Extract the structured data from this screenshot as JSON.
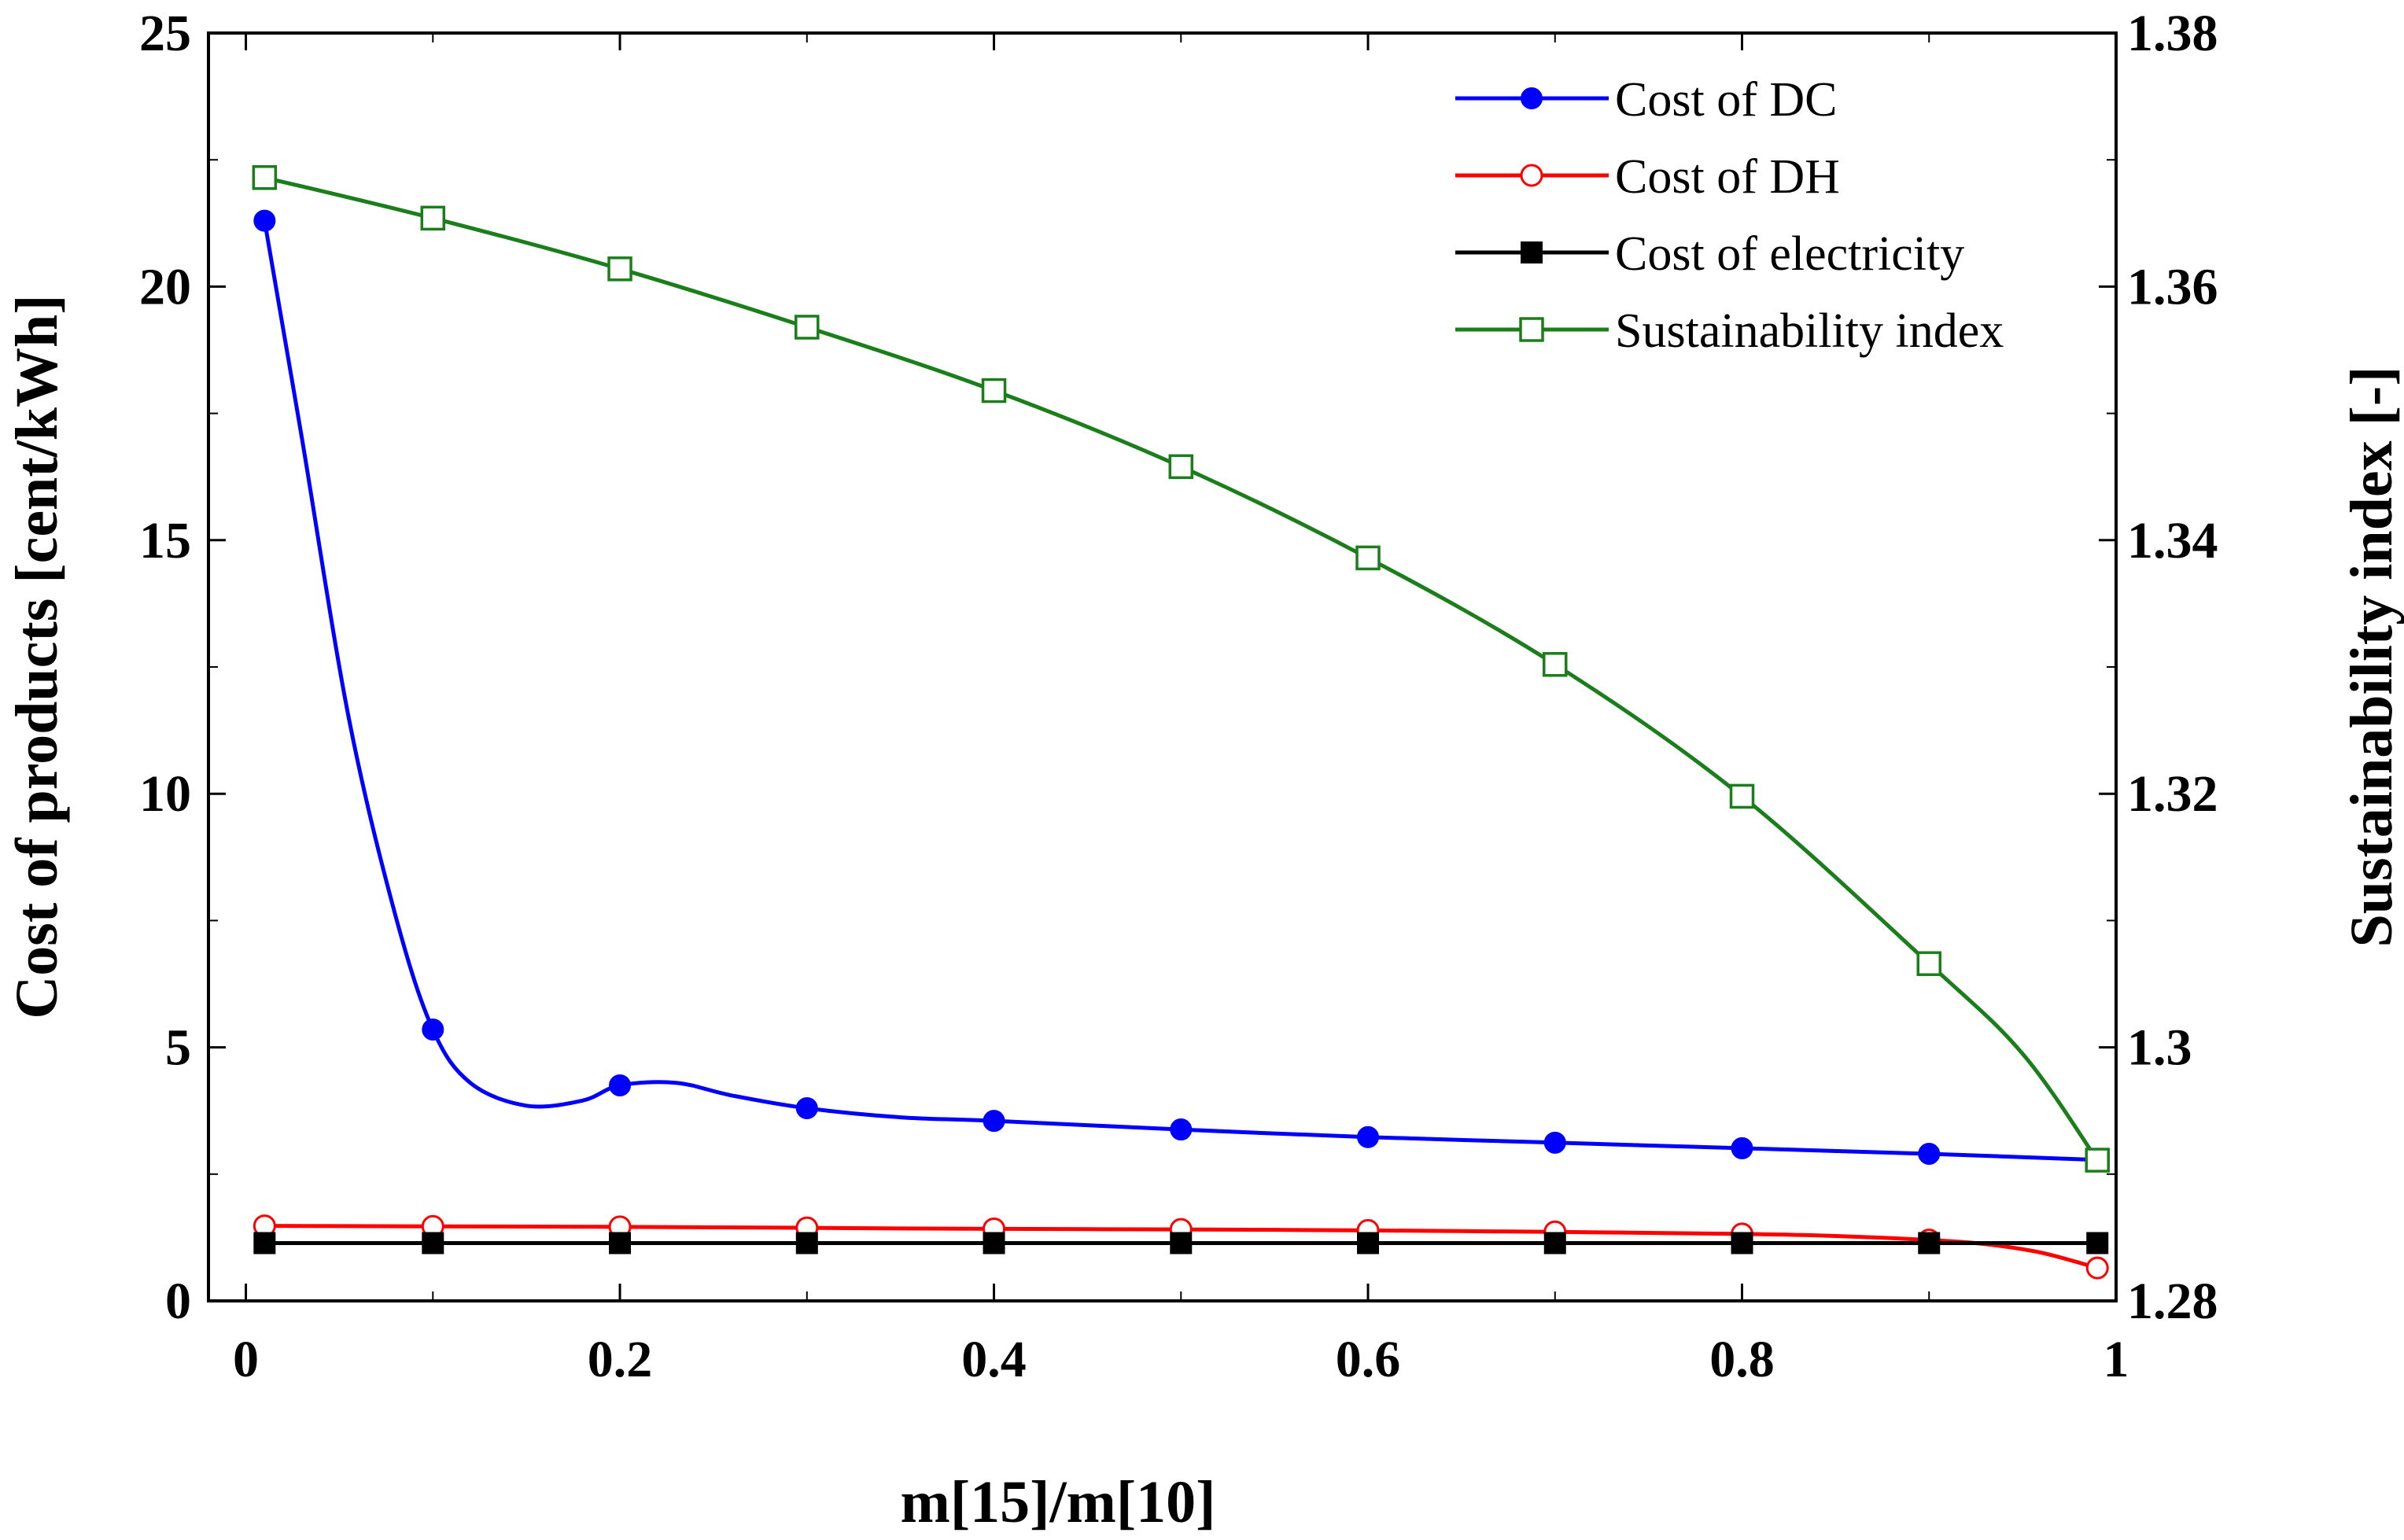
{
  "chart_data": {
    "type": "line",
    "x": [
      0.01,
      0.1,
      0.2,
      0.3,
      0.4,
      0.5,
      0.6,
      0.7,
      0.8,
      0.9,
      0.99
    ],
    "xlabel": "m[15]/m[10]",
    "ylabel": "Cost of products [cent/kWh]",
    "y2label": "Sustainability index [-]",
    "xlim": [
      -0.02,
      1.0
    ],
    "ylim": [
      0,
      25
    ],
    "y2lim": [
      1.28,
      1.38
    ],
    "xticks": [
      0,
      0.2,
      0.4,
      0.6,
      0.8,
      1
    ],
    "xtick_labels": [
      "0",
      "0.2",
      "0.4",
      "0.6",
      "0.8",
      "1"
    ],
    "yticks": [
      0,
      5,
      10,
      15,
      20,
      25
    ],
    "ytick_labels": [
      "0",
      "5",
      "10",
      "15",
      "20",
      "25"
    ],
    "y2ticks": [
      1.28,
      1.3,
      1.32,
      1.34,
      1.36,
      1.38
    ],
    "y2tick_labels": [
      "1.28",
      "1.3",
      "1.32",
      "1.34",
      "1.36",
      "1.38"
    ],
    "grid": false,
    "legend_position": "top-right",
    "series": [
      {
        "name": "Cost of DC",
        "axis": "left",
        "color": "#0000ff",
        "marker": "filled-circle",
        "values": [
          21.3,
          5.35,
          4.25,
          3.8,
          3.55,
          3.38,
          3.23,
          3.12,
          3.01,
          2.9,
          2.78
        ],
        "curve": [
          [
            0.01,
            21.3
          ],
          [
            0.03,
            17.0
          ],
          [
            0.055,
            11.5
          ],
          [
            0.08,
            7.6
          ],
          [
            0.1,
            5.35
          ],
          [
            0.12,
            4.3
          ],
          [
            0.15,
            3.85
          ],
          [
            0.18,
            3.95
          ],
          [
            0.2,
            4.25
          ],
          [
            0.23,
            4.3
          ],
          [
            0.26,
            4.05
          ],
          [
            0.3,
            3.8
          ],
          [
            0.35,
            3.62
          ],
          [
            0.4,
            3.55
          ],
          [
            0.5,
            3.38
          ],
          [
            0.6,
            3.23
          ],
          [
            0.7,
            3.12
          ],
          [
            0.8,
            3.01
          ],
          [
            0.9,
            2.9
          ],
          [
            0.99,
            2.78
          ]
        ]
      },
      {
        "name": "Cost of DH",
        "axis": "left",
        "color": "#ff0000",
        "marker": "open-circle",
        "values": [
          1.48,
          1.47,
          1.46,
          1.44,
          1.42,
          1.41,
          1.39,
          1.36,
          1.32,
          1.2,
          0.65
        ],
        "curve": [
          [
            0.01,
            1.48
          ],
          [
            0.1,
            1.47
          ],
          [
            0.2,
            1.46
          ],
          [
            0.3,
            1.44
          ],
          [
            0.4,
            1.42
          ],
          [
            0.5,
            1.41
          ],
          [
            0.6,
            1.39
          ],
          [
            0.7,
            1.36
          ],
          [
            0.8,
            1.32
          ],
          [
            0.85,
            1.28
          ],
          [
            0.9,
            1.2
          ],
          [
            0.93,
            1.12
          ],
          [
            0.96,
            0.95
          ],
          [
            0.99,
            0.65
          ]
        ]
      },
      {
        "name": "Cost of electricity",
        "axis": "left",
        "color": "#000000",
        "marker": "filled-square",
        "values": [
          1.14,
          1.14,
          1.14,
          1.14,
          1.14,
          1.14,
          1.14,
          1.14,
          1.14,
          1.14,
          1.14
        ],
        "curve": [
          [
            0.01,
            1.14
          ],
          [
            0.99,
            1.14
          ]
        ]
      },
      {
        "name": "Sustainability index",
        "axis": "right",
        "color": "#1a7f1a",
        "marker": "open-square",
        "values": [
          1.3686,
          1.3654,
          1.3614,
          1.3568,
          1.3518,
          1.3458,
          1.3386,
          1.3302,
          1.3198,
          1.3066,
          1.2911
        ],
        "curve": [
          [
            0.01,
            1.3686
          ],
          [
            0.1,
            1.3654
          ],
          [
            0.2,
            1.3614
          ],
          [
            0.3,
            1.3568
          ],
          [
            0.4,
            1.3518
          ],
          [
            0.5,
            1.3458
          ],
          [
            0.6,
            1.3386
          ],
          [
            0.7,
            1.3302
          ],
          [
            0.8,
            1.3198
          ],
          [
            0.9,
            1.3066
          ],
          [
            0.95,
            1.2995
          ],
          [
            0.99,
            1.2911
          ]
        ]
      }
    ]
  }
}
